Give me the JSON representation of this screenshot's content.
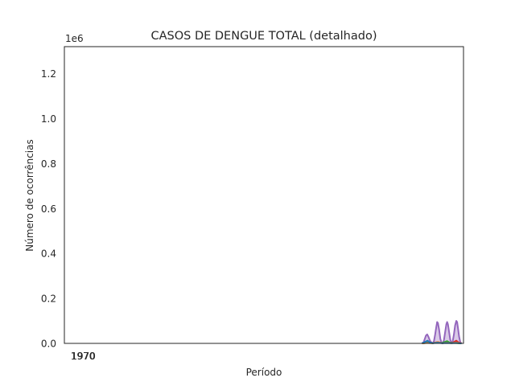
{
  "chart_data": {
    "type": "area",
    "title": "CASOS DE DENGUE TOTAL (detalhado)",
    "xlabel": "Período",
    "ylabel": "Número de ocorrências",
    "y_offset_label": "1e6",
    "xlim": [
      0,
      100
    ],
    "ylim": [
      0,
      1.32
    ],
    "y_ticks": [
      "0.0",
      "0.2",
      "0.4",
      "0.6",
      "0.8",
      "1.0",
      "1.2"
    ],
    "x_tick_labels": [
      "1970",
      "1970"
    ],
    "grid": false,
    "legend": "none",
    "series": [
      {
        "color": "#9467bd",
        "points": [
          [
            89.6,
            0
          ],
          [
            90.0,
            0.005
          ],
          [
            90.3,
            0.02
          ],
          [
            90.6,
            0.035
          ],
          [
            90.9,
            0.04
          ],
          [
            91.2,
            0.03
          ],
          [
            91.6,
            0.012
          ],
          [
            92.0,
            0.003
          ],
          [
            92.3,
            0
          ],
          [
            92.6,
            0.01
          ],
          [
            92.9,
            0.04
          ],
          [
            93.2,
            0.075
          ],
          [
            93.4,
            0.095
          ],
          [
            93.6,
            0.09
          ],
          [
            93.9,
            0.06
          ],
          [
            94.2,
            0.02
          ],
          [
            94.5,
            0.004
          ],
          [
            94.8,
            0
          ],
          [
            95.1,
            0.015
          ],
          [
            95.4,
            0.05
          ],
          [
            95.7,
            0.085
          ],
          [
            95.9,
            0.095
          ],
          [
            96.1,
            0.085
          ],
          [
            96.4,
            0.05
          ],
          [
            96.7,
            0.015
          ],
          [
            97.0,
            0.003
          ],
          [
            97.3,
            0.01
          ],
          [
            97.6,
            0.04
          ],
          [
            97.9,
            0.08
          ],
          [
            98.2,
            0.1
          ],
          [
            98.4,
            0.095
          ],
          [
            98.6,
            0.07
          ],
          [
            98.9,
            0.03
          ],
          [
            99.2,
            0.005
          ],
          [
            99.5,
            0
          ]
        ]
      },
      {
        "color": "#d62728",
        "points": [
          [
            89.6,
            0
          ],
          [
            91.2,
            0.004
          ],
          [
            92.4,
            0.002
          ],
          [
            93.5,
            0.006
          ],
          [
            94.6,
            0.002
          ],
          [
            96.0,
            0.004
          ],
          [
            97.3,
            0.003
          ],
          [
            98.2,
            0.012
          ],
          [
            98.8,
            0.004
          ],
          [
            99.5,
            0
          ]
        ]
      },
      {
        "color": "#2ca02c",
        "points": [
          [
            89.6,
            0
          ],
          [
            91.0,
            0.003
          ],
          [
            92.2,
            0.001
          ],
          [
            93.4,
            0.004
          ],
          [
            94.6,
            0.002
          ],
          [
            95.9,
            0.01
          ],
          [
            96.6,
            0.003
          ],
          [
            97.6,
            0.002
          ],
          [
            98.6,
            0.001
          ],
          [
            99.5,
            0
          ]
        ]
      },
      {
        "color": "#ff7f0e",
        "points": [
          [
            89.6,
            0
          ],
          [
            91.0,
            0.002
          ],
          [
            92.3,
            0.001
          ],
          [
            93.6,
            0.006
          ],
          [
            94.6,
            0.001
          ],
          [
            95.8,
            0.003
          ],
          [
            97.0,
            0.001
          ],
          [
            98.2,
            0.004
          ],
          [
            99.5,
            0
          ]
        ]
      },
      {
        "color": "#1f77b4",
        "points": [
          [
            89.6,
            0
          ],
          [
            90.3,
            0.006
          ],
          [
            91.0,
            0.012
          ],
          [
            91.6,
            0.004
          ],
          [
            92.4,
            0.001
          ],
          [
            93.5,
            0.003
          ],
          [
            94.6,
            0.001
          ],
          [
            95.8,
            0.002
          ],
          [
            97.0,
            0.001
          ],
          [
            98.2,
            0.002
          ],
          [
            99.5,
            0
          ]
        ]
      }
    ]
  }
}
